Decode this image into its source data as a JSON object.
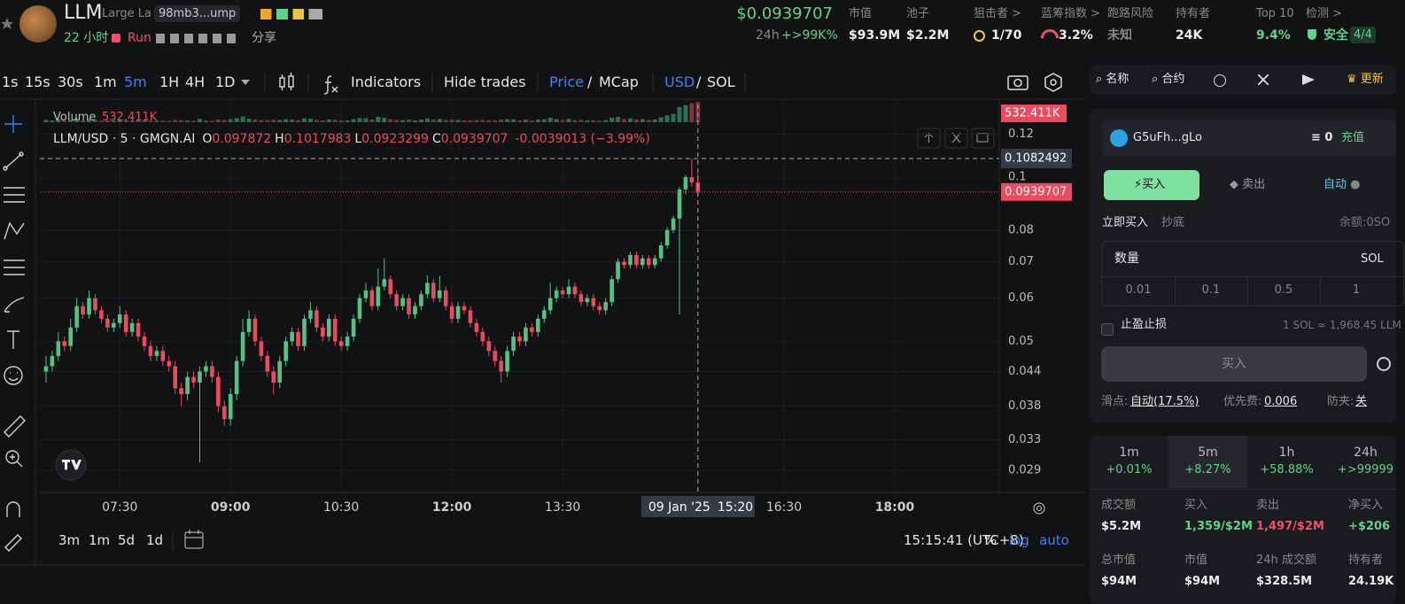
{
  "header": {
    "token": "LLM",
    "name": "Large La",
    "address": "98mb3...ump",
    "age": "22 小时",
    "run": "Run",
    "share": "分享",
    "price": "$0.0939707",
    "change_label": "24h",
    "change": "+>99K%",
    "stats": [
      {
        "label": "市值",
        "value": "$93.9M"
      },
      {
        "label": "池子",
        "value": "$2.2M"
      },
      {
        "label": "狙击者 >",
        "value": "1/70"
      },
      {
        "label": "蓝筹指数 >",
        "value": "3.2%"
      },
      {
        "label": "跑路风险",
        "value": "未知"
      },
      {
        "label": "持有者",
        "value": "24K"
      },
      {
        "label": "Top 10",
        "value": "9.4%"
      },
      {
        "label": "检测 >",
        "value": "安全",
        "extra": "4/4"
      }
    ]
  },
  "toolbar": {
    "intervals": [
      "1s",
      "15s",
      "30s",
      "1m",
      "5m",
      "1H",
      "4H",
      "1D"
    ],
    "selected_interval": 4,
    "indicators": "Indicators",
    "hide_trades": "Hide trades",
    "price": "Price",
    "sep": "/",
    "mcap": "MCap",
    "usd": "USD",
    "sol": "SOL"
  },
  "chart": {
    "type": "candlestick",
    "volume_label": "Volume",
    "volume_tag": {
      "value": 532411,
      "label": "532.411K"
    },
    "legend": {
      "symbol": "LLM/USD · 5 · GMGN.AI",
      "items": [
        {
          "k": "O",
          "v": "0.097872"
        },
        {
          "k": "H",
          "v": "0.1017983"
        },
        {
          "k": "L",
          "v": "0.0923299"
        },
        {
          "k": "C",
          "v": "0.0939707"
        }
      ],
      "change": "-0.0039013 (−3.99%)"
    },
    "up_color": "#52c285",
    "down_color": "#eb4a5f",
    "log_scale": true,
    "grid": true,
    "ylim": [
      0.0265,
      0.136
    ],
    "yticks": [
      0.12,
      0.1,
      0.08,
      0.07,
      0.06,
      0.05,
      0.044,
      0.038,
      0.033,
      0.029
    ],
    "xlim": [
      -1,
      155
    ],
    "xticks": [
      {
        "value": 12,
        "label": "07:30"
      },
      {
        "value": 30,
        "label": "09:00",
        "major": true
      },
      {
        "value": 48,
        "label": "10:30"
      },
      {
        "value": 66,
        "label": "12:00",
        "major": true
      },
      {
        "value": 84,
        "label": "13:30"
      },
      {
        "value": 120,
        "label": "16:30"
      },
      {
        "value": 138,
        "label": "18:00",
        "major": true
      }
    ],
    "candles": [
      [
        0.044,
        0.047,
        0.042,
        0.045
      ],
      [
        0.045,
        0.048,
        0.044,
        0.047
      ],
      [
        0.047,
        0.052,
        0.046,
        0.05
      ],
      [
        0.05,
        0.051,
        0.048,
        0.049
      ],
      [
        0.049,
        0.055,
        0.048,
        0.053
      ],
      [
        0.053,
        0.06,
        0.052,
        0.058
      ],
      [
        0.058,
        0.059,
        0.055,
        0.056
      ],
      [
        0.056,
        0.062,
        0.055,
        0.06
      ],
      [
        0.06,
        0.061,
        0.056,
        0.057
      ],
      [
        0.057,
        0.058,
        0.054,
        0.055
      ],
      [
        0.055,
        0.056,
        0.052,
        0.053
      ],
      [
        0.053,
        0.055,
        0.052,
        0.054
      ],
      [
        0.054,
        0.058,
        0.053,
        0.056
      ],
      [
        0.056,
        0.057,
        0.051,
        0.052
      ],
      [
        0.052,
        0.055,
        0.051,
        0.054
      ],
      [
        0.054,
        0.055,
        0.05,
        0.051
      ],
      [
        0.051,
        0.052,
        0.048,
        0.049
      ],
      [
        0.049,
        0.05,
        0.046,
        0.047
      ],
      [
        0.047,
        0.049,
        0.046,
        0.048
      ],
      [
        0.048,
        0.049,
        0.045,
        0.046
      ],
      [
        0.046,
        0.047,
        0.044,
        0.045
      ],
      [
        0.045,
        0.046,
        0.04,
        0.041
      ],
      [
        0.041,
        0.042,
        0.038,
        0.04
      ],
      [
        0.04,
        0.044,
        0.039,
        0.043
      ],
      [
        0.043,
        0.044,
        0.041,
        0.042
      ],
      [
        0.042,
        0.045,
        0.03,
        0.044
      ],
      [
        0.044,
        0.046,
        0.043,
        0.045
      ],
      [
        0.045,
        0.046,
        0.042,
        0.043
      ],
      [
        0.043,
        0.044,
        0.037,
        0.038
      ],
      [
        0.038,
        0.039,
        0.035,
        0.036
      ],
      [
        0.036,
        0.041,
        0.035,
        0.04
      ],
      [
        0.04,
        0.047,
        0.039,
        0.046
      ],
      [
        0.046,
        0.055,
        0.045,
        0.052
      ],
      [
        0.052,
        0.057,
        0.051,
        0.055
      ],
      [
        0.055,
        0.056,
        0.049,
        0.05
      ],
      [
        0.05,
        0.051,
        0.046,
        0.047
      ],
      [
        0.047,
        0.048,
        0.043,
        0.044
      ],
      [
        0.044,
        0.045,
        0.04,
        0.042
      ],
      [
        0.042,
        0.047,
        0.041,
        0.046
      ],
      [
        0.046,
        0.051,
        0.045,
        0.05
      ],
      [
        0.05,
        0.053,
        0.049,
        0.052
      ],
      [
        0.052,
        0.053,
        0.048,
        0.049
      ],
      [
        0.049,
        0.056,
        0.048,
        0.055
      ],
      [
        0.055,
        0.059,
        0.054,
        0.057
      ],
      [
        0.057,
        0.058,
        0.052,
        0.053
      ],
      [
        0.053,
        0.054,
        0.05,
        0.051
      ],
      [
        0.051,
        0.056,
        0.05,
        0.055
      ],
      [
        0.055,
        0.056,
        0.049,
        0.05
      ],
      [
        0.05,
        0.051,
        0.048,
        0.049
      ],
      [
        0.049,
        0.052,
        0.048,
        0.051
      ],
      [
        0.051,
        0.056,
        0.05,
        0.055
      ],
      [
        0.055,
        0.061,
        0.054,
        0.06
      ],
      [
        0.06,
        0.064,
        0.059,
        0.062
      ],
      [
        0.062,
        0.063,
        0.057,
        0.058
      ],
      [
        0.058,
        0.068,
        0.057,
        0.063
      ],
      [
        0.063,
        0.071,
        0.062,
        0.065
      ],
      [
        0.065,
        0.066,
        0.06,
        0.061
      ],
      [
        0.061,
        0.062,
        0.057,
        0.058
      ],
      [
        0.058,
        0.061,
        0.057,
        0.06
      ],
      [
        0.06,
        0.061,
        0.055,
        0.056
      ],
      [
        0.056,
        0.059,
        0.055,
        0.058
      ],
      [
        0.058,
        0.062,
        0.057,
        0.061
      ],
      [
        0.061,
        0.066,
        0.06,
        0.064
      ],
      [
        0.064,
        0.065,
        0.059,
        0.06
      ],
      [
        0.06,
        0.066,
        0.059,
        0.062
      ],
      [
        0.062,
        0.063,
        0.057,
        0.058
      ],
      [
        0.058,
        0.059,
        0.054,
        0.055
      ],
      [
        0.055,
        0.059,
        0.054,
        0.058
      ],
      [
        0.058,
        0.059,
        0.056,
        0.057
      ],
      [
        0.057,
        0.058,
        0.053,
        0.054
      ],
      [
        0.054,
        0.055,
        0.051,
        0.052
      ],
      [
        0.052,
        0.053,
        0.049,
        0.05
      ],
      [
        0.05,
        0.051,
        0.047,
        0.048
      ],
      [
        0.048,
        0.049,
        0.045,
        0.046
      ],
      [
        0.046,
        0.047,
        0.042,
        0.044
      ],
      [
        0.044,
        0.049,
        0.043,
        0.048
      ],
      [
        0.048,
        0.052,
        0.047,
        0.051
      ],
      [
        0.051,
        0.052,
        0.049,
        0.05
      ],
      [
        0.05,
        0.054,
        0.049,
        0.053
      ],
      [
        0.053,
        0.054,
        0.051,
        0.052
      ],
      [
        0.052,
        0.056,
        0.051,
        0.055
      ],
      [
        0.055,
        0.058,
        0.054,
        0.057
      ],
      [
        0.057,
        0.064,
        0.056,
        0.06
      ],
      [
        0.06,
        0.063,
        0.059,
        0.062
      ],
      [
        0.062,
        0.063,
        0.06,
        0.061
      ],
      [
        0.061,
        0.065,
        0.06,
        0.063
      ],
      [
        0.063,
        0.064,
        0.06,
        0.061
      ],
      [
        0.061,
        0.062,
        0.058,
        0.059
      ],
      [
        0.059,
        0.061,
        0.058,
        0.06
      ],
      [
        0.06,
        0.061,
        0.057,
        0.058
      ],
      [
        0.058,
        0.059,
        0.056,
        0.057
      ],
      [
        0.057,
        0.06,
        0.056,
        0.059
      ],
      [
        0.059,
        0.066,
        0.058,
        0.065
      ],
      [
        0.065,
        0.071,
        0.064,
        0.07
      ],
      [
        0.07,
        0.071,
        0.068,
        0.069
      ],
      [
        0.069,
        0.073,
        0.068,
        0.072
      ],
      [
        0.072,
        0.073,
        0.068,
        0.069
      ],
      [
        0.069,
        0.072,
        0.068,
        0.071
      ],
      [
        0.071,
        0.072,
        0.068,
        0.069
      ],
      [
        0.069,
        0.072,
        0.068,
        0.071
      ],
      [
        0.071,
        0.076,
        0.07,
        0.075
      ],
      [
        0.075,
        0.081,
        0.074,
        0.08
      ],
      [
        0.08,
        0.085,
        0.079,
        0.084
      ],
      [
        0.084,
        0.096,
        0.056,
        0.095
      ],
      [
        0.095,
        0.101,
        0.093,
        0.1
      ],
      [
        0.1,
        0.1082492,
        0.096,
        0.097872
      ],
      [
        0.097872,
        0.1017983,
        0.0923299,
        0.0939707
      ]
    ],
    "volumes": [
      60000,
      45000,
      80000,
      40000,
      70000,
      110000,
      50000,
      90000,
      60000,
      40000,
      45000,
      35000,
      50000,
      55000,
      40000,
      45000,
      50000,
      40000,
      35000,
      40000,
      30000,
      60000,
      50000,
      45000,
      35000,
      90000,
      40000,
      35000,
      70000,
      60000,
      80000,
      110000,
      150000,
      90000,
      70000,
      60000,
      55000,
      65000,
      60000,
      80000,
      70000,
      55000,
      100000,
      90000,
      60000,
      50000,
      70000,
      65000,
      45000,
      50000,
      80000,
      110000,
      100000,
      70000,
      140000,
      120000,
      80000,
      60000,
      55000,
      70000,
      50000,
      70000,
      100000,
      75000,
      85000,
      60000,
      65000,
      60000,
      45000,
      50000,
      55000,
      60000,
      55000,
      50000,
      70000,
      80000,
      75000,
      50000,
      65000,
      45000,
      70000,
      75000,
      120000,
      80000,
      60000,
      90000,
      55000,
      60000,
      45000,
      50000,
      40000,
      55000,
      120000,
      140000,
      80000,
      100000,
      70000,
      80000,
      60000,
      75000,
      130000,
      180000,
      220000,
      400000,
      450000,
      500000,
      532411
    ],
    "volume_ylim": [
      0,
      560000
    ],
    "last_price": 0.0939707,
    "crosshair": {
      "index": 106,
      "price": 0.1082492,
      "date": "09 Jan '25",
      "time": "15:20"
    }
  },
  "chart_footer": {
    "ranges": [
      "3m",
      "1m",
      "5d",
      "1d"
    ],
    "clock": "15:15:41 (UTC+8)",
    "percent": "%",
    "log": "log",
    "auto": "auto"
  },
  "panel": {
    "search": [
      "名称",
      "合约"
    ],
    "update": "更新",
    "wallet": "G5uFh...gLo",
    "balance": "0",
    "deposit": "充值",
    "tabs": [
      "买入",
      "卖出",
      "自动"
    ],
    "modes": [
      "立即买入",
      "抄底"
    ],
    "remaining": "余额:0SO",
    "amount": "数量",
    "unit": "SOL",
    "presets": [
      "0.01",
      "0.1",
      "0.5",
      "1"
    ],
    "tpsl": "止盈止损",
    "rate": "1 SOL ≈ 1,968.45 LLM",
    "buy": "买入",
    "slippage_label": "滑点:",
    "slippage": "自动(17.5%)",
    "priority_label": "优先费:",
    "priority": "0.006",
    "mev_label": "防夹:",
    "mev": "关",
    "periods": [
      {
        "label": "1m",
        "value": "+0.01%"
      },
      {
        "label": "5m",
        "value": "+8.27%"
      },
      {
        "label": "1h",
        "value": "+58.88%"
      },
      {
        "label": "24h",
        "value": "+>99999"
      }
    ],
    "selected_period": 1,
    "stats1": [
      {
        "label": "成交额",
        "value": "$5.2M"
      },
      {
        "label": "买入",
        "value": "1,359/$2M"
      },
      {
        "label": "卖出",
        "value": "1,497/$2M"
      },
      {
        "label": "净买入",
        "value": "+$206"
      }
    ],
    "stats2": [
      {
        "label": "总市值",
        "value": "$94M"
      },
      {
        "label": "市值",
        "value": "$94M"
      },
      {
        "label": "24h 成交额",
        "value": "$328.5M"
      },
      {
        "label": "持有者",
        "value": "24.19K"
      }
    ]
  }
}
